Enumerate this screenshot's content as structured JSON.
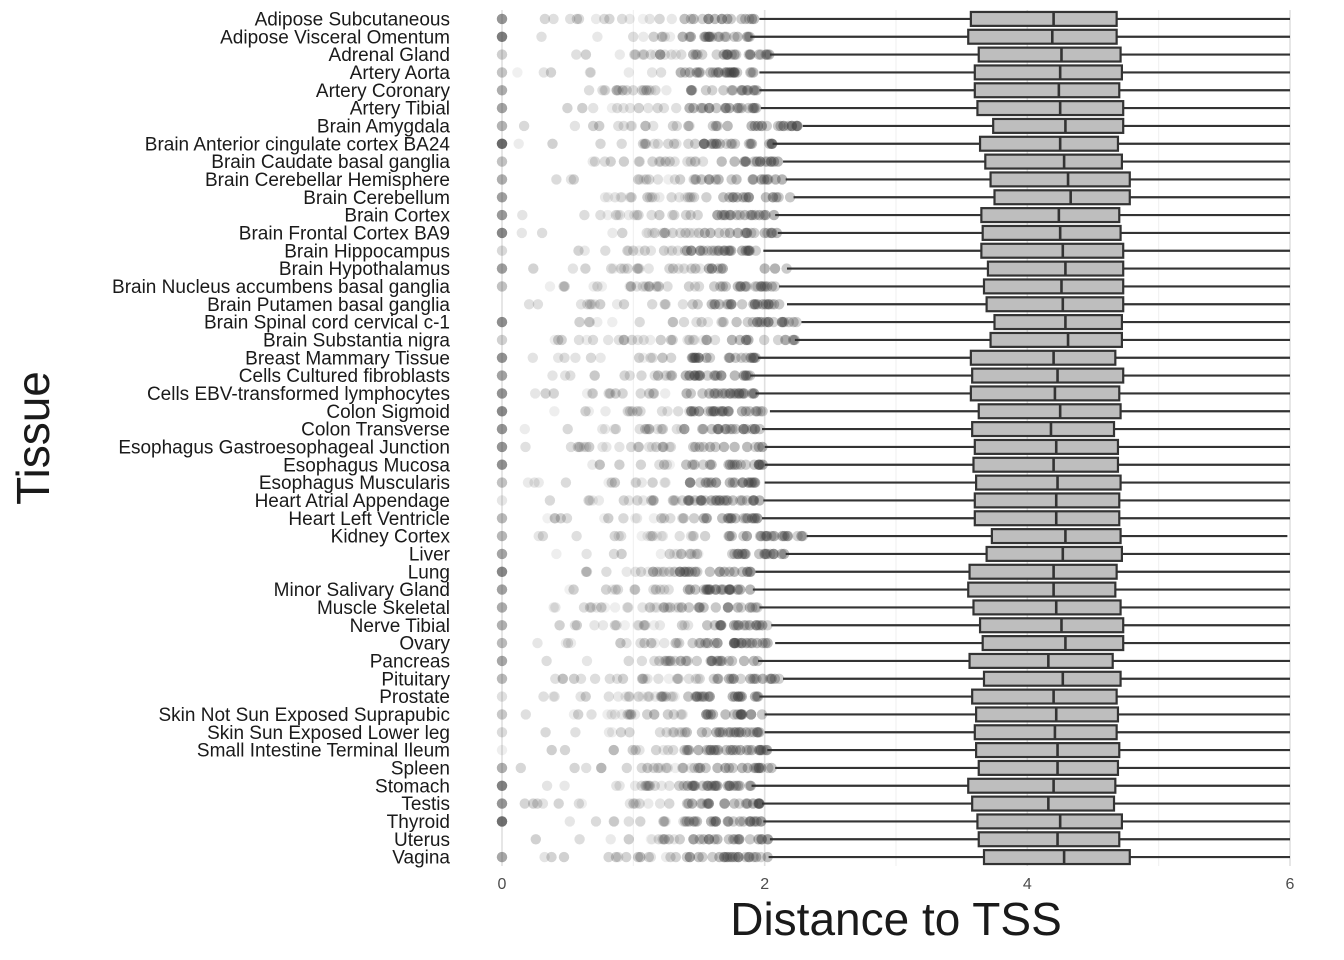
{
  "chart_data": {
    "type": "boxplot",
    "xlabel": "Distance to TSS",
    "ylabel": "Tissue",
    "xlim": [
      0,
      6
    ],
    "x_ticks": [
      0,
      2,
      4,
      6
    ],
    "x_tick_labels": [
      "0",
      "2",
      "4",
      "6"
    ],
    "grid": true,
    "colors": {
      "box_fill": "#bebebe",
      "box_stroke": "#333333",
      "outlier": "#404040",
      "grid_major": "#e0e0e0",
      "grid_minor": "#efefef"
    },
    "categories": [
      "Adipose Subcutaneous",
      "Adipose Visceral Omentum",
      "Adrenal Gland",
      "Artery Aorta",
      "Artery Coronary",
      "Artery Tibial",
      "Brain Amygdala",
      "Brain Anterior cingulate cortex BA24",
      "Brain Caudate basal ganglia",
      "Brain Cerebellar Hemisphere",
      "Brain Cerebellum",
      "Brain Cortex",
      "Brain Frontal Cortex BA9",
      "Brain Hippocampus",
      "Brain Hypothalamus",
      "Brain Nucleus accumbens basal ganglia",
      "Brain Putamen basal ganglia",
      "Brain Spinal cord cervical c-1",
      "Brain Substantia nigra",
      "Breast Mammary Tissue",
      "Cells Cultured fibroblasts",
      "Cells EBV-transformed lymphocytes",
      "Colon Sigmoid",
      "Colon Transverse",
      "Esophagus Gastroesophageal Junction",
      "Esophagus Mucosa",
      "Esophagus Muscularis",
      "Heart Atrial Appendage",
      "Heart Left Ventricle",
      "Kidney Cortex",
      "Liver",
      "Lung",
      "Minor Salivary Gland",
      "Muscle Skeletal",
      "Nerve Tibial",
      "Ovary",
      "Pancreas",
      "Pituitary",
      "Prostate",
      "Skin Not Sun Exposed Suprapubic",
      "Skin Sun Exposed Lower leg",
      "Small Intestine Terminal Ileum",
      "Spleen",
      "Stomach",
      "Testis",
      "Thyroid",
      "Uterus",
      "Vagina"
    ],
    "boxes": [
      {
        "q1": 3.57,
        "median": 4.2,
        "q3": 4.68,
        "whisker_low": 1.96,
        "whisker_high": 6.0
      },
      {
        "q1": 3.55,
        "median": 4.19,
        "q3": 4.68,
        "whisker_low": 1.89,
        "whisker_high": 6.0
      },
      {
        "q1": 3.63,
        "median": 4.26,
        "q3": 4.71,
        "whisker_low": 2.04,
        "whisker_high": 6.0
      },
      {
        "q1": 3.6,
        "median": 4.25,
        "q3": 4.72,
        "whisker_low": 1.96,
        "whisker_high": 6.0
      },
      {
        "q1": 3.6,
        "median": 4.24,
        "q3": 4.7,
        "whisker_low": 1.96,
        "whisker_high": 6.0
      },
      {
        "q1": 3.62,
        "median": 4.25,
        "q3": 4.73,
        "whisker_low": 1.97,
        "whisker_high": 6.0
      },
      {
        "q1": 3.74,
        "median": 4.29,
        "q3": 4.73,
        "whisker_low": 2.29,
        "whisker_high": 6.0
      },
      {
        "q1": 3.64,
        "median": 4.25,
        "q3": 4.69,
        "whisker_low": 2.06,
        "whisker_high": 6.0
      },
      {
        "q1": 3.68,
        "median": 4.28,
        "q3": 4.72,
        "whisker_low": 2.14,
        "whisker_high": 6.0
      },
      {
        "q1": 3.72,
        "median": 4.31,
        "q3": 4.78,
        "whisker_low": 2.16,
        "whisker_high": 6.0
      },
      {
        "q1": 3.75,
        "median": 4.33,
        "q3": 4.78,
        "whisker_low": 2.22,
        "whisker_high": 6.0
      },
      {
        "q1": 3.65,
        "median": 4.24,
        "q3": 4.7,
        "whisker_low": 2.08,
        "whisker_high": 6.0
      },
      {
        "q1": 3.66,
        "median": 4.25,
        "q3": 4.71,
        "whisker_low": 2.1,
        "whisker_high": 6.0
      },
      {
        "q1": 3.65,
        "median": 4.27,
        "q3": 4.73,
        "whisker_low": 1.99,
        "whisker_high": 6.0
      },
      {
        "q1": 3.7,
        "median": 4.29,
        "q3": 4.73,
        "whisker_low": 2.17,
        "whisker_high": 6.0
      },
      {
        "q1": 3.67,
        "median": 4.26,
        "q3": 4.73,
        "whisker_low": 2.11,
        "whisker_high": 6.0
      },
      {
        "q1": 3.69,
        "median": 4.27,
        "q3": 4.73,
        "whisker_low": 2.17,
        "whisker_high": 6.0
      },
      {
        "q1": 3.75,
        "median": 4.29,
        "q3": 4.72,
        "whisker_low": 2.28,
        "whisker_high": 6.0
      },
      {
        "q1": 3.72,
        "median": 4.31,
        "q3": 4.72,
        "whisker_low": 2.23,
        "whisker_high": 6.0
      },
      {
        "q1": 3.57,
        "median": 4.2,
        "q3": 4.67,
        "whisker_low": 1.95,
        "whisker_high": 6.0
      },
      {
        "q1": 3.58,
        "median": 4.23,
        "q3": 4.73,
        "whisker_low": 1.89,
        "whisker_high": 6.0
      },
      {
        "q1": 3.57,
        "median": 4.21,
        "q3": 4.7,
        "whisker_low": 1.93,
        "whisker_high": 6.0
      },
      {
        "q1": 3.63,
        "median": 4.25,
        "q3": 4.71,
        "whisker_low": 2.04,
        "whisker_high": 6.0
      },
      {
        "q1": 3.58,
        "median": 4.18,
        "q3": 4.66,
        "whisker_low": 1.98,
        "whisker_high": 6.0
      },
      {
        "q1": 3.6,
        "median": 4.22,
        "q3": 4.69,
        "whisker_low": 2.0,
        "whisker_high": 6.0
      },
      {
        "q1": 3.59,
        "median": 4.2,
        "q3": 4.69,
        "whisker_low": 2.0,
        "whisker_high": 6.0
      },
      {
        "q1": 3.61,
        "median": 4.23,
        "q3": 4.71,
        "whisker_low": 2.0,
        "whisker_high": 6.0
      },
      {
        "q1": 3.6,
        "median": 4.22,
        "q3": 4.7,
        "whisker_low": 1.99,
        "whisker_high": 6.0
      },
      {
        "q1": 3.6,
        "median": 4.22,
        "q3": 4.7,
        "whisker_low": 1.98,
        "whisker_high": 6.0
      },
      {
        "q1": 3.73,
        "median": 4.29,
        "q3": 4.71,
        "whisker_low": 2.32,
        "whisker_high": 5.98
      },
      {
        "q1": 3.69,
        "median": 4.27,
        "q3": 4.72,
        "whisker_low": 2.16,
        "whisker_high": 6.0
      },
      {
        "q1": 3.56,
        "median": 4.2,
        "q3": 4.68,
        "whisker_low": 1.93,
        "whisker_high": 6.0
      },
      {
        "q1": 3.55,
        "median": 4.2,
        "q3": 4.67,
        "whisker_low": 1.91,
        "whisker_high": 6.0
      },
      {
        "q1": 3.59,
        "median": 4.22,
        "q3": 4.71,
        "whisker_low": 1.96,
        "whisker_high": 6.0
      },
      {
        "q1": 3.64,
        "median": 4.26,
        "q3": 4.73,
        "whisker_low": 2.05,
        "whisker_high": 6.0
      },
      {
        "q1": 3.66,
        "median": 4.29,
        "q3": 4.73,
        "whisker_low": 2.08,
        "whisker_high": 6.0
      },
      {
        "q1": 3.56,
        "median": 4.16,
        "q3": 4.65,
        "whisker_low": 1.95,
        "whisker_high": 6.0
      },
      {
        "q1": 3.67,
        "median": 4.27,
        "q3": 4.71,
        "whisker_low": 2.14,
        "whisker_high": 6.0
      },
      {
        "q1": 3.58,
        "median": 4.2,
        "q3": 4.68,
        "whisker_low": 1.96,
        "whisker_high": 6.0
      },
      {
        "q1": 3.61,
        "median": 4.22,
        "q3": 4.69,
        "whisker_low": 2.0,
        "whisker_high": 6.0
      },
      {
        "q1": 3.6,
        "median": 4.21,
        "q3": 4.68,
        "whisker_low": 2.0,
        "whisker_high": 6.0
      },
      {
        "q1": 3.61,
        "median": 4.23,
        "q3": 4.7,
        "whisker_low": 2.02,
        "whisker_high": 6.0
      },
      {
        "q1": 3.63,
        "median": 4.23,
        "q3": 4.69,
        "whisker_low": 2.08,
        "whisker_high": 6.0
      },
      {
        "q1": 3.55,
        "median": 4.2,
        "q3": 4.67,
        "whisker_low": 1.9,
        "whisker_high": 6.0
      },
      {
        "q1": 3.58,
        "median": 4.16,
        "q3": 4.66,
        "whisker_low": 1.98,
        "whisker_high": 6.0
      },
      {
        "q1": 3.62,
        "median": 4.25,
        "q3": 4.72,
        "whisker_low": 1.99,
        "whisker_high": 6.0
      },
      {
        "q1": 3.63,
        "median": 4.23,
        "q3": 4.7,
        "whisker_low": 2.04,
        "whisker_high": 6.0
      },
      {
        "q1": 3.67,
        "median": 4.28,
        "q3": 4.78,
        "whisker_low": 2.03,
        "whisker_high": 6.0
      }
    ]
  }
}
